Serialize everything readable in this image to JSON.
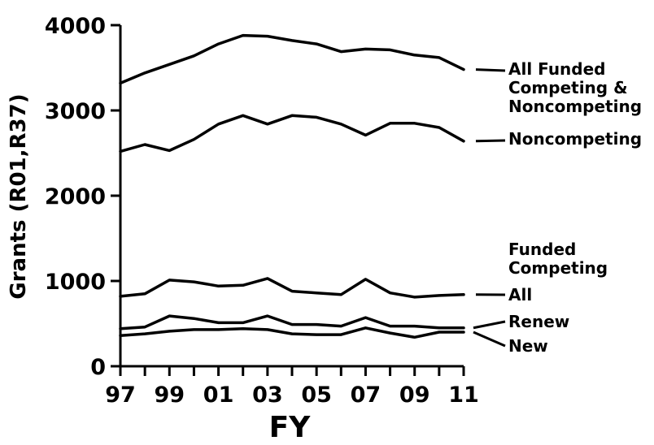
{
  "chart_data": {
    "type": "line",
    "title": "",
    "xlabel": "FY",
    "ylabel": "Grants (R01,R37)",
    "xlim": [
      1997,
      2011
    ],
    "ylim": [
      0,
      4000
    ],
    "x": [
      1997,
      1998,
      1999,
      2000,
      2001,
      2002,
      2003,
      2004,
      2005,
      2006,
      2007,
      2008,
      2009,
      2010,
      2011
    ],
    "x_ticks": [
      {
        "value": 1997,
        "label": "97"
      },
      {
        "value": 1999,
        "label": "99"
      },
      {
        "value": 2001,
        "label": "01"
      },
      {
        "value": 2003,
        "label": "03"
      },
      {
        "value": 2005,
        "label": "05"
      },
      {
        "value": 2007,
        "label": "07"
      },
      {
        "value": 2009,
        "label": "09"
      },
      {
        "value": 2011,
        "label": "11"
      }
    ],
    "y_ticks": [
      {
        "value": 0,
        "label": "0"
      },
      {
        "value": 1000,
        "label": "1000"
      },
      {
        "value": 2000,
        "label": "2000"
      },
      {
        "value": 3000,
        "label": "3000"
      },
      {
        "value": 4000,
        "label": "4000"
      }
    ],
    "grid": false,
    "group_label": [
      "Funded",
      "Competing"
    ],
    "series": [
      {
        "name": "All Funded Competing & Noncompeting",
        "label_lines": [
          "All Funded",
          "Competing &",
          "Noncompeting"
        ],
        "values": [
          3320,
          3440,
          3540,
          3640,
          3780,
          3880,
          3870,
          3820,
          3780,
          3690,
          3720,
          3710,
          3650,
          3620,
          3480
        ]
      },
      {
        "name": "Noncompeting",
        "label_lines": [
          "Noncompeting"
        ],
        "values": [
          2520,
          2600,
          2530,
          2660,
          2840,
          2940,
          2840,
          2940,
          2920,
          2840,
          2710,
          2850,
          2850,
          2800,
          2640
        ]
      },
      {
        "name": "All",
        "label_lines": [
          "All"
        ],
        "values": [
          820,
          850,
          1010,
          990,
          940,
          950,
          1030,
          880,
          860,
          840,
          1020,
          860,
          810,
          830,
          840
        ]
      },
      {
        "name": "Renew",
        "label_lines": [
          "Renew"
        ],
        "values": [
          440,
          460,
          590,
          560,
          510,
          510,
          590,
          490,
          490,
          470,
          570,
          470,
          470,
          450,
          450
        ]
      },
      {
        "name": "New",
        "label_lines": [
          "New"
        ],
        "values": [
          360,
          380,
          410,
          430,
          430,
          440,
          430,
          380,
          370,
          370,
          450,
          390,
          340,
          400,
          400
        ]
      }
    ]
  }
}
